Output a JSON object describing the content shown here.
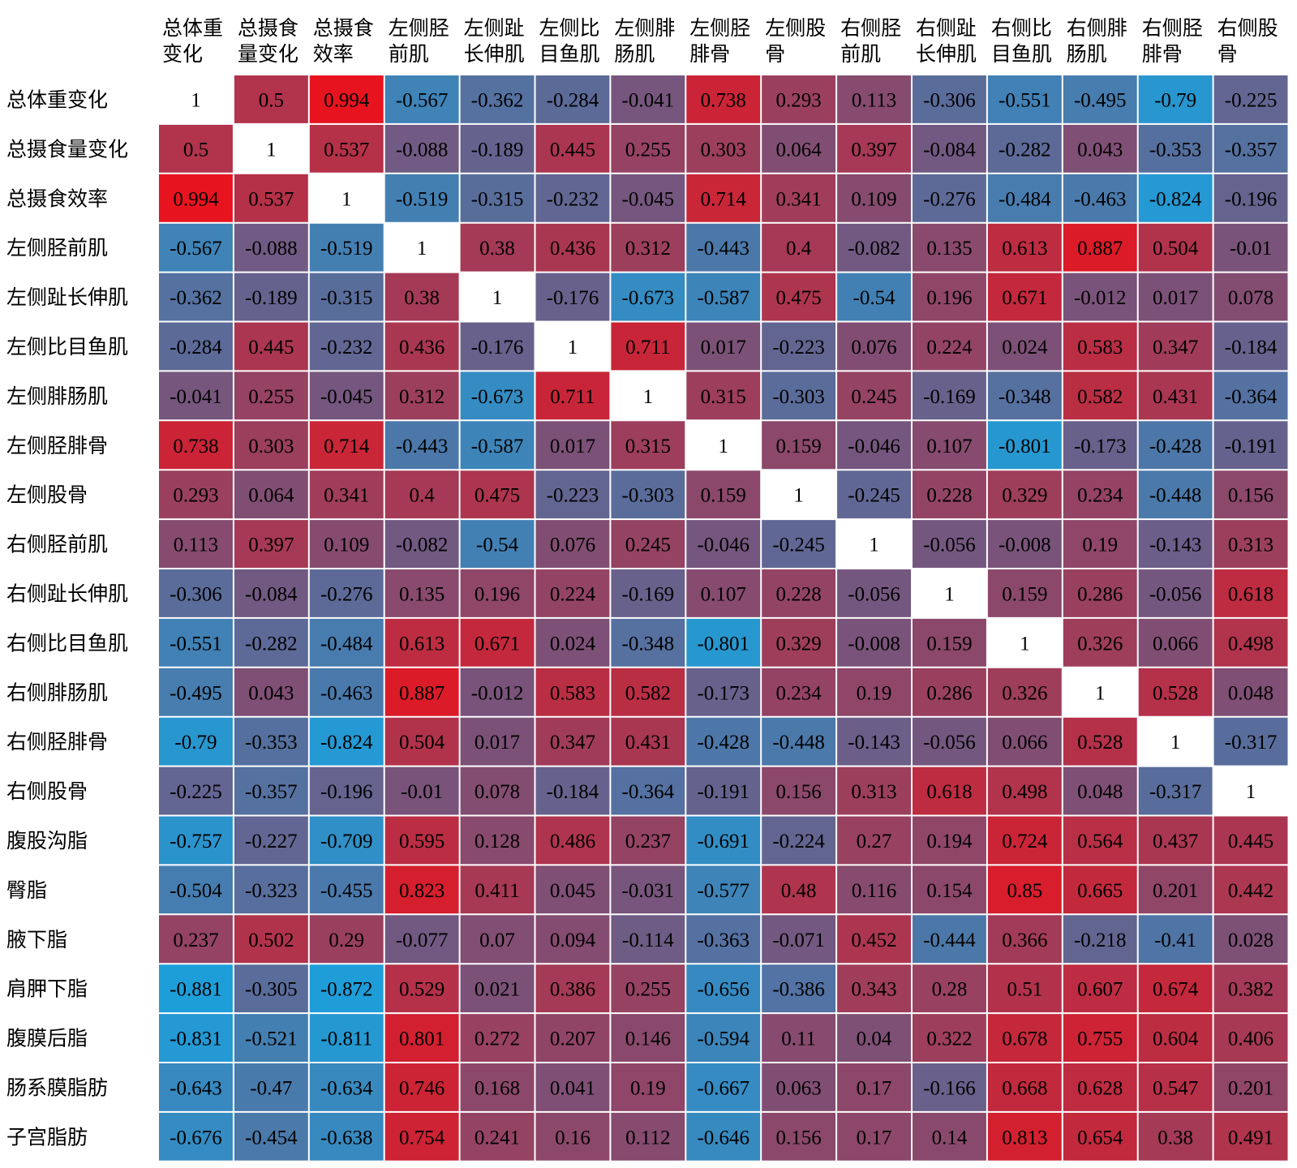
{
  "chart_data": {
    "type": "heatmap",
    "columns": [
      "总体重变化",
      "总摄食量变化",
      "总摄食效率",
      "左侧胫前肌",
      "左侧趾长伸肌",
      "左侧比目鱼肌",
      "左侧腓肠肌",
      "左侧胫腓骨",
      "左侧股骨",
      "右侧胫前肌",
      "右侧趾长伸肌",
      "右侧比目鱼肌",
      "右侧腓肠肌",
      "右侧胫腓骨",
      "右侧股骨"
    ],
    "column_labels": [
      [
        "总体重",
        "变化"
      ],
      [
        "总摄食",
        "量变化"
      ],
      [
        "总摄食",
        "效率"
      ],
      [
        "左侧胫",
        "前肌"
      ],
      [
        "左侧趾",
        "长伸肌"
      ],
      [
        "左侧比",
        "目鱼肌"
      ],
      [
        "左侧腓",
        "肠肌"
      ],
      [
        "左侧胫",
        "腓骨"
      ],
      [
        "左侧股",
        "骨"
      ],
      [
        "右侧胫",
        "前肌"
      ],
      [
        "右侧趾",
        "长伸肌"
      ],
      [
        "右侧比",
        "目鱼肌"
      ],
      [
        "右侧腓",
        "肠肌"
      ],
      [
        "右侧胫",
        "腓骨"
      ],
      [
        "右侧股",
        "骨"
      ]
    ],
    "rows": [
      "总体重变化",
      "总摄食量变化",
      "总摄食效率",
      "左侧胫前肌",
      "左侧趾长伸肌",
      "左侧比目鱼肌",
      "左侧腓肠肌",
      "左侧胫腓骨",
      "左侧股骨",
      "右侧胫前肌",
      "右侧趾长伸肌",
      "右侧比目鱼肌",
      "右侧腓肠肌",
      "右侧胫腓骨",
      "右侧股骨",
      "腹股沟脂",
      "臀脂",
      "腋下脂",
      "肩胛下脂",
      "腹膜后脂",
      "肠系膜脂肪",
      "子宫脂肪"
    ],
    "values": [
      [
        "1",
        "0.5",
        "0.994",
        "-0.567",
        "-0.362",
        "-0.284",
        "-0.041",
        "0.738",
        "0.293",
        "0.113",
        "-0.306",
        "-0.551",
        "-0.495",
        "-0.79",
        "-0.225"
      ],
      [
        "0.5",
        "1",
        "0.537",
        "-0.088",
        "-0.189",
        "0.445",
        "0.255",
        "0.303",
        "0.064",
        "0.397",
        "-0.084",
        "-0.282",
        "0.043",
        "-0.353",
        "-0.357"
      ],
      [
        "0.994",
        "0.537",
        "1",
        "-0.519",
        "-0.315",
        "-0.232",
        "-0.045",
        "0.714",
        "0.341",
        "0.109",
        "-0.276",
        "-0.484",
        "-0.463",
        "-0.824",
        "-0.196"
      ],
      [
        "-0.567",
        "-0.088",
        "-0.519",
        "1",
        "0.38",
        "0.436",
        "0.312",
        "-0.443",
        "0.4",
        "-0.082",
        "0.135",
        "0.613",
        "0.887",
        "0.504",
        "-0.01"
      ],
      [
        "-0.362",
        "-0.189",
        "-0.315",
        "0.38",
        "1",
        "-0.176",
        "-0.673",
        "-0.587",
        "0.475",
        "-0.54",
        "0.196",
        "0.671",
        "-0.012",
        "0.017",
        "0.078"
      ],
      [
        "-0.284",
        "0.445",
        "-0.232",
        "0.436",
        "-0.176",
        "1",
        "0.711",
        "0.017",
        "-0.223",
        "0.076",
        "0.224",
        "0.024",
        "0.583",
        "0.347",
        "-0.184"
      ],
      [
        "-0.041",
        "0.255",
        "-0.045",
        "0.312",
        "-0.673",
        "0.711",
        "1",
        "0.315",
        "-0.303",
        "0.245",
        "-0.169",
        "-0.348",
        "0.582",
        "0.431",
        "-0.364"
      ],
      [
        "0.738",
        "0.303",
        "0.714",
        "-0.443",
        "-0.587",
        "0.017",
        "0.315",
        "1",
        "0.159",
        "-0.046",
        "0.107",
        "-0.801",
        "-0.173",
        "-0.428",
        "-0.191"
      ],
      [
        "0.293",
        "0.064",
        "0.341",
        "0.4",
        "0.475",
        "-0.223",
        "-0.303",
        "0.159",
        "1",
        "-0.245",
        "0.228",
        "0.329",
        "0.234",
        "-0.448",
        "0.156"
      ],
      [
        "0.113",
        "0.397",
        "0.109",
        "-0.082",
        "-0.54",
        "0.076",
        "0.245",
        "-0.046",
        "-0.245",
        "1",
        "-0.056",
        "-0.008",
        "0.19",
        "-0.143",
        "0.313"
      ],
      [
        "-0.306",
        "-0.084",
        "-0.276",
        "0.135",
        "0.196",
        "0.224",
        "-0.169",
        "0.107",
        "0.228",
        "-0.056",
        "1",
        "0.159",
        "0.286",
        "-0.056",
        "0.618"
      ],
      [
        "-0.551",
        "-0.282",
        "-0.484",
        "0.613",
        "0.671",
        "0.024",
        "-0.348",
        "-0.801",
        "0.329",
        "-0.008",
        "0.159",
        "1",
        "0.326",
        "0.066",
        "0.498"
      ],
      [
        "-0.495",
        "0.043",
        "-0.463",
        "0.887",
        "-0.012",
        "0.583",
        "0.582",
        "-0.173",
        "0.234",
        "0.19",
        "0.286",
        "0.326",
        "1",
        "0.528",
        "0.048"
      ],
      [
        "-0.79",
        "-0.353",
        "-0.824",
        "0.504",
        "0.017",
        "0.347",
        "0.431",
        "-0.428",
        "-0.448",
        "-0.143",
        "-0.056",
        "0.066",
        "0.528",
        "1",
        "-0.317"
      ],
      [
        "-0.225",
        "-0.357",
        "-0.196",
        "-0.01",
        "0.078",
        "-0.184",
        "-0.364",
        "-0.191",
        "0.156",
        "0.313",
        "0.618",
        "0.498",
        "0.048",
        "-0.317",
        "1"
      ],
      [
        "-0.757",
        "-0.227",
        "-0.709",
        "0.595",
        "0.128",
        "0.486",
        "0.237",
        "-0.691",
        "-0.224",
        "0.27",
        "0.194",
        "0.724",
        "0.564",
        "0.437",
        "0.445"
      ],
      [
        "-0.504",
        "-0.323",
        "-0.455",
        "0.823",
        "0.411",
        "0.045",
        "-0.031",
        "-0.577",
        "0.48",
        "0.116",
        "0.154",
        "0.85",
        "0.665",
        "0.201",
        "0.442"
      ],
      [
        "0.237",
        "0.502",
        "0.29",
        "-0.077",
        "0.07",
        "0.094",
        "-0.114",
        "-0.363",
        "-0.071",
        "0.452",
        "-0.444",
        "0.366",
        "-0.218",
        "-0.41",
        "0.028"
      ],
      [
        "-0.881",
        "-0.305",
        "-0.872",
        "0.529",
        "0.021",
        "0.386",
        "0.255",
        "-0.656",
        "-0.386",
        "0.343",
        "0.28",
        "0.51",
        "0.607",
        "0.674",
        "0.382"
      ],
      [
        "-0.831",
        "-0.521",
        "-0.811",
        "0.801",
        "0.272",
        "0.207",
        "0.146",
        "-0.594",
        "0.11",
        "0.04",
        "0.322",
        "0.678",
        "0.755",
        "0.604",
        "0.406"
      ],
      [
        "-0.643",
        "-0.47",
        "-0.634",
        "0.746",
        "0.168",
        "0.041",
        "0.19",
        "-0.667",
        "0.063",
        "0.17",
        "-0.166",
        "0.668",
        "0.628",
        "0.547",
        "0.201"
      ],
      [
        "-0.676",
        "-0.454",
        "-0.638",
        "0.754",
        "0.241",
        "0.16",
        "0.112",
        "-0.646",
        "0.156",
        "0.17",
        "0.14",
        "0.813",
        "0.654",
        "0.38",
        "0.491"
      ]
    ],
    "colors": {
      "positive": "#e8141e",
      "negative": "#12a8e6",
      "neutral": "#7a5279",
      "diagonal": "#ffffff",
      "grid": "#ffffff",
      "text": "#000000"
    },
    "value_range": [
      -1,
      1
    ],
    "legend": "none"
  }
}
